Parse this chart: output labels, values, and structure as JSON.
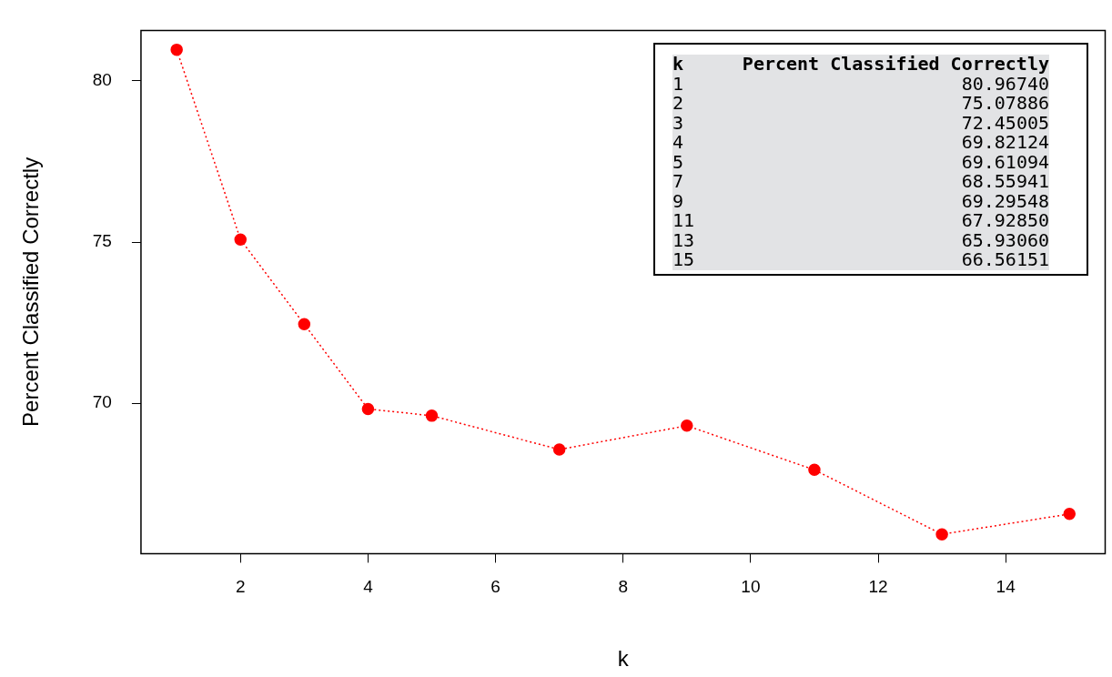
{
  "chart_data": [
    {
      "type": "line",
      "xlabel": "k",
      "ylabel": "Percent Classified Correctly",
      "x": [
        1,
        2,
        3,
        4,
        5,
        7,
        9,
        11,
        13,
        15
      ],
      "values": [
        80.97,
        75.08,
        72.45,
        69.82,
        69.61,
        68.56,
        69.3,
        67.93,
        65.93,
        66.56
      ],
      "color": "#ff0000",
      "marker": "circle",
      "line_style": "dotted",
      "grid": false,
      "legend": false,
      "xlim": [
        0.44,
        15.56
      ],
      "xticks": [
        2,
        4,
        6,
        8,
        10,
        12,
        14
      ],
      "ylim": [
        65.33,
        81.57
      ],
      "yticks": [
        70,
        75,
        80
      ]
    },
    {
      "type": "other",
      "annotations": [
        "k",
        "Percent Classified Correctly",
        "1",
        "80.96740",
        "2",
        "75.07886",
        "3",
        "72.45005",
        "4",
        "69.82124",
        "5",
        "69.61094",
        "7",
        "68.55941",
        "9",
        "69.29548",
        "11",
        "67.92850",
        "13",
        "65.93060",
        "15",
        "66.56151"
      ]
    }
  ]
}
